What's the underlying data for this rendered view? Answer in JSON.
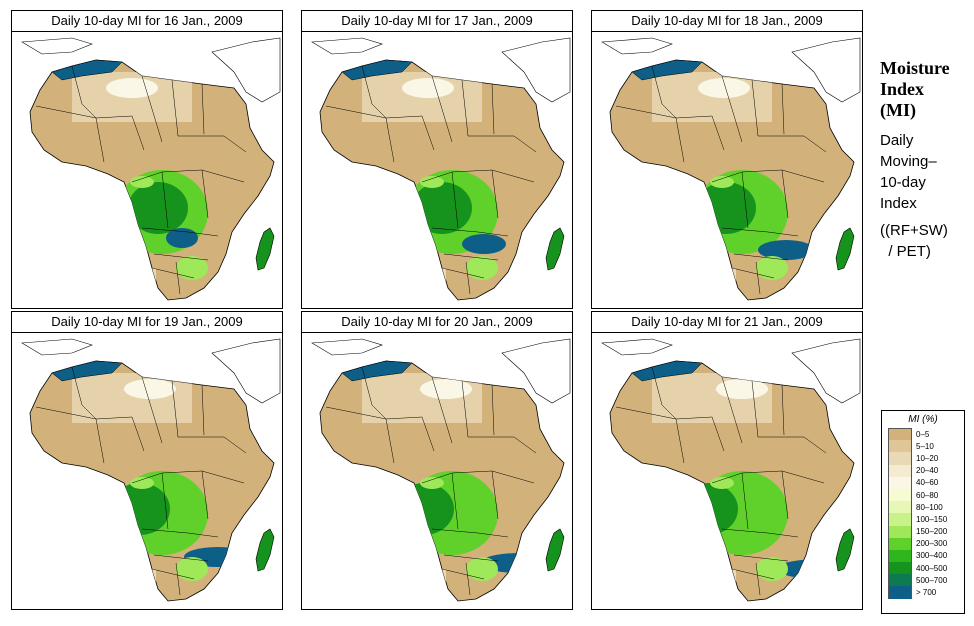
{
  "panels": [
    {
      "title": "Daily 10-day MI for  16 Jan., 2009"
    },
    {
      "title": "Daily 10-day MI for  17 Jan., 2009"
    },
    {
      "title": "Daily 10-day MI for  18 Jan., 2009"
    },
    {
      "title": "Daily 10-day MI for  19 Jan., 2009"
    },
    {
      "title": "Daily 10-day MI for  20 Jan., 2009"
    },
    {
      "title": "Daily 10-day MI for  21 Jan., 2009"
    }
  ],
  "side": {
    "title_lines": [
      "Moisture",
      "Index",
      "(MI)"
    ],
    "desc_lines": [
      "Daily",
      "Moving–",
      "10-day",
      "Index"
    ],
    "formula_lines": [
      "((RF+SW)",
      "  / PET)"
    ]
  },
  "legend": {
    "title": "MI (%)",
    "items": [
      {
        "label": "0–5",
        "color": "#d2b27a"
      },
      {
        "label": "5–10",
        "color": "#e0c597"
      },
      {
        "label": "10–20",
        "color": "#ead9b6"
      },
      {
        "label": "20–40",
        "color": "#f4ebd2"
      },
      {
        "label": "40–60",
        "color": "#fbf7e6"
      },
      {
        "label": "60–80",
        "color": "#f6fbd2"
      },
      {
        "label": "80–100",
        "color": "#e7f7b6"
      },
      {
        "label": "100–150",
        "color": "#c9f28a"
      },
      {
        "label": "150–200",
        "color": "#9fe85a"
      },
      {
        "label": "200–300",
        "color": "#5fd12a"
      },
      {
        "label": "300–400",
        "color": "#2fb51e"
      },
      {
        "label": "400–500",
        "color": "#16931d"
      },
      {
        "label": "500–700",
        "color": "#0e7a52"
      },
      {
        "label": "> 700",
        "color": "#0d5f87"
      }
    ]
  }
}
